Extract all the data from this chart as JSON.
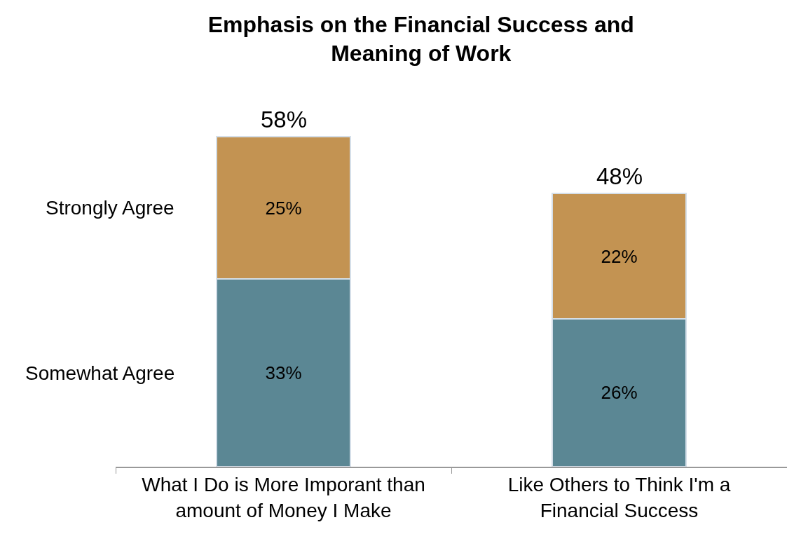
{
  "chart_data": {
    "type": "bar",
    "title": "Emphasis on the Financial Success and\nMeaning of Work",
    "stacked": true,
    "legend": false,
    "grid": false,
    "tick_labels": "x",
    "categories": [
      "What I Do is More Imporant than\namount of Money I Make",
      "Like Others to Think I'm a\nFinancial Success"
    ],
    "series": [
      {
        "name": "Somewhat Agree",
        "color": "#5b8794",
        "values": [
          33,
          26
        ],
        "value_labels": [
          "33%",
          "26%"
        ]
      },
      {
        "name": "Strongly Agree",
        "color": "#c39352",
        "values": [
          25,
          22
        ],
        "value_labels": [
          "25%",
          "22%"
        ]
      }
    ],
    "totals": [
      "58%",
      "48%"
    ]
  }
}
